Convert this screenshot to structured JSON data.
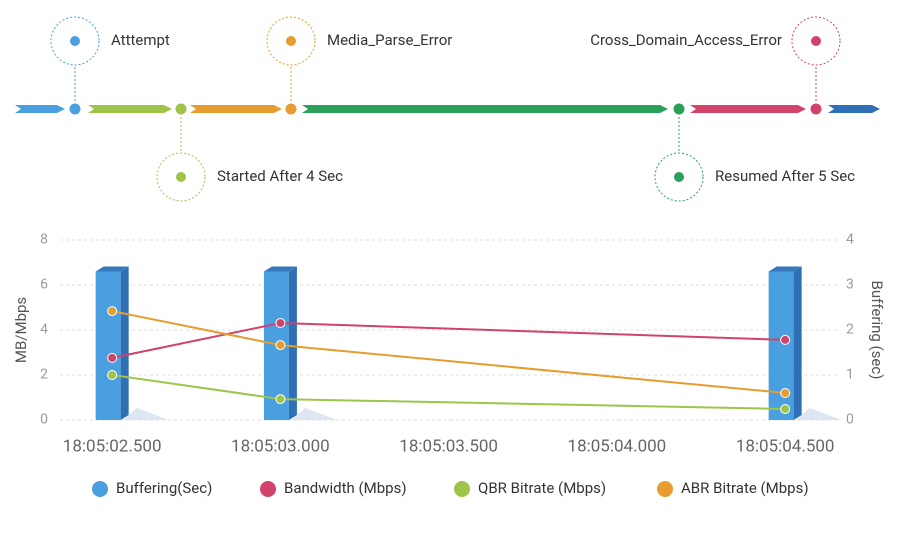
{
  "timeline": {
    "events": [
      {
        "label": "Atttempt",
        "color": "#4a9fe0"
      },
      {
        "label": "Started After 4 Sec",
        "color": "#9ec54a"
      },
      {
        "label": "Media_Parse_Error",
        "color": "#e69c2f"
      },
      {
        "label": "Resumed After 5 Sec",
        "color": "#2aa05a"
      },
      {
        "label": "Cross_Domain_Access_Error",
        "color": "#d0436a"
      }
    ],
    "segments": [
      "#4a9fe0",
      "#9ec54a",
      "#e69c2f",
      "#2aa05a",
      "#d0436a",
      "#2f6fb5"
    ]
  },
  "chart_data": {
    "type": "combo",
    "y_label": "MB/Mbps",
    "y2_label": "Buffering (sec)",
    "x": [
      "18:05:02.500",
      "18:05:03.000",
      "18:05:04.500"
    ],
    "xlim": [
      "18:05:02.345",
      "18:05:04.663"
    ],
    "xticks": [
      "18:05:02.500",
      "18:05:03.000",
      "18:05:03.500",
      "18:05:04.000",
      "18:05:04.500"
    ],
    "ylim": [
      0,
      8
    ],
    "yticks": [
      0,
      2,
      4,
      6,
      8
    ],
    "y2lim": [
      0,
      4
    ],
    "y2ticks": [
      0,
      1,
      2,
      3,
      4
    ],
    "grid": true,
    "legend": "bottom",
    "series": [
      {
        "name": "Buffering(Sec)",
        "type": "bar",
        "axis": "y2",
        "color": "#4a9fe0",
        "values": [
          3.3,
          3.3,
          3.3
        ]
      },
      {
        "name": "Bandwidth (Mbps)",
        "type": "line",
        "color": "#d0436a",
        "values": [
          2.76,
          4.31,
          3.56
        ]
      },
      {
        "name": "QBR Bitrate (Mbps)",
        "type": "line",
        "color": "#9ec54a",
        "values": [
          2.0,
          0.93,
          0.49
        ]
      },
      {
        "name": "ABR Bitrate (Mbps)",
        "type": "line",
        "color": "#e69c2f",
        "values": [
          4.84,
          3.33,
          1.2
        ]
      }
    ]
  }
}
